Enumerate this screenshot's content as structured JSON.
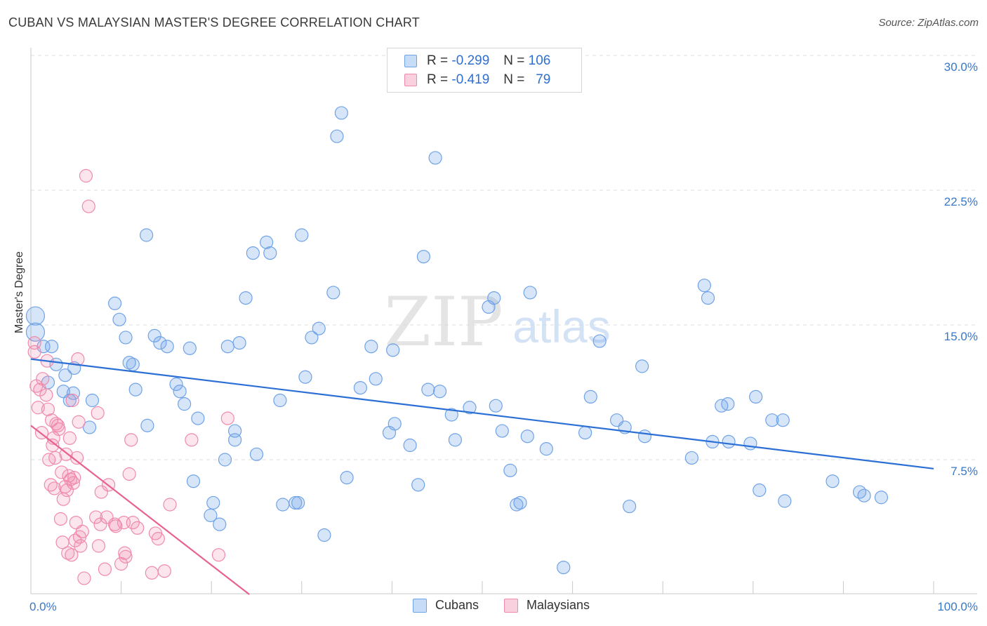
{
  "title": "CUBAN VS MALAYSIAN MASTER'S DEGREE CORRELATION CHART",
  "source": "Source: ZipAtlas.com",
  "watermark": {
    "zip": "ZIP",
    "atlas": "atlas"
  },
  "legend": {
    "rows": [
      {
        "r_label": "R =",
        "r_value": "-0.299",
        "n_label": "N =",
        "n_value": "106",
        "color": "#6fa3e8"
      },
      {
        "r_label": "R =",
        "r_value": "-0.419",
        "n_label": "N =",
        "n_value": "79",
        "color": "#f08aab"
      }
    ]
  },
  "bottom_legend": {
    "items": [
      {
        "label": "Cubans",
        "color": "#6fa3e8"
      },
      {
        "label": "Malaysians",
        "color": "#f08aab"
      }
    ]
  },
  "chart_data": {
    "type": "scatter",
    "title": "CUBAN VS MALAYSIAN MASTER'S DEGREE CORRELATION CHART",
    "xlabel": "",
    "ylabel": "Master's Degree",
    "xlim": [
      0,
      100
    ],
    "ylim": [
      0,
      31
    ],
    "x_tick_labels": {
      "min": "0.0%",
      "max": "100.0%"
    },
    "y_ticks": [
      {
        "value": 7.5,
        "label": "7.5%"
      },
      {
        "value": 15,
        "label": "15.0%"
      },
      {
        "value": 22.5,
        "label": "22.5%"
      },
      {
        "value": 30,
        "label": "30.0%"
      }
    ],
    "grid": true,
    "legend_position": "top-center",
    "series": [
      {
        "name": "Cubans",
        "color": "#6fa3e8",
        "r": -0.299,
        "n": 106,
        "trend": {
          "x": [
            0,
            100
          ],
          "y": [
            13.1,
            7.0
          ]
        },
        "points": [
          [
            0.5,
            15.5
          ],
          [
            0.5,
            14.6
          ],
          [
            1.4,
            13.8
          ],
          [
            2.3,
            13.8
          ],
          [
            2.8,
            12.8
          ],
          [
            1.9,
            11.8
          ],
          [
            3.8,
            12.2
          ],
          [
            4.8,
            12.6
          ],
          [
            3.6,
            11.3
          ],
          [
            4.7,
            11.2
          ],
          [
            4.3,
            10.8
          ],
          [
            6.8,
            10.8
          ],
          [
            6.5,
            9.3
          ],
          [
            9.8,
            15.3
          ],
          [
            9.3,
            16.2
          ],
          [
            10.5,
            14.3
          ],
          [
            10.9,
            12.9
          ],
          [
            11.3,
            12.8
          ],
          [
            11.6,
            11.4
          ],
          [
            12.9,
            9.4
          ],
          [
            13.7,
            14.4
          ],
          [
            14.3,
            14.0
          ],
          [
            15.1,
            13.8
          ],
          [
            12.8,
            20.0
          ],
          [
            16.1,
            11.7
          ],
          [
            16.5,
            11.3
          ],
          [
            17.0,
            10.6
          ],
          [
            17.6,
            13.7
          ],
          [
            18.5,
            9.8
          ],
          [
            18.0,
            6.3
          ],
          [
            19.9,
            4.4
          ],
          [
            20.9,
            3.9
          ],
          [
            20.2,
            5.1
          ],
          [
            21.5,
            7.5
          ],
          [
            21.8,
            13.8
          ],
          [
            22.6,
            9.1
          ],
          [
            22.6,
            8.6
          ],
          [
            23.1,
            14.0
          ],
          [
            23.8,
            16.5
          ],
          [
            24.6,
            19.0
          ],
          [
            25.0,
            7.8
          ],
          [
            26.1,
            19.6
          ],
          [
            26.5,
            19.0
          ],
          [
            27.6,
            10.8
          ],
          [
            27.9,
            5.0
          ],
          [
            29.3,
            5.1
          ],
          [
            29.6,
            5.1
          ],
          [
            30.0,
            20.0
          ],
          [
            30.4,
            12.1
          ],
          [
            31.1,
            14.3
          ],
          [
            31.9,
            14.8
          ],
          [
            32.5,
            3.3
          ],
          [
            33.5,
            16.8
          ],
          [
            33.9,
            25.5
          ],
          [
            34.4,
            26.8
          ],
          [
            35.0,
            6.5
          ],
          [
            36.5,
            11.5
          ],
          [
            37.7,
            13.8
          ],
          [
            38.2,
            12.0
          ],
          [
            39.7,
            9.0
          ],
          [
            40.1,
            13.6
          ],
          [
            40.3,
            9.5
          ],
          [
            42.0,
            8.3
          ],
          [
            42.9,
            6.1
          ],
          [
            43.5,
            18.8
          ],
          [
            44.0,
            11.4
          ],
          [
            44.8,
            24.3
          ],
          [
            45.3,
            11.3
          ],
          [
            46.6,
            10.0
          ],
          [
            47.0,
            8.6
          ],
          [
            48.6,
            10.4
          ],
          [
            50.7,
            16.0
          ],
          [
            51.3,
            16.5
          ],
          [
            51.5,
            10.5
          ],
          [
            52.2,
            9.1
          ],
          [
            53.1,
            6.9
          ],
          [
            53.8,
            5.0
          ],
          [
            54.2,
            5.1
          ],
          [
            55.0,
            8.8
          ],
          [
            55.3,
            16.8
          ],
          [
            57.1,
            8.1
          ],
          [
            59.0,
            1.5
          ],
          [
            61.4,
            9.0
          ],
          [
            62.0,
            11.0
          ],
          [
            63.0,
            14.1
          ],
          [
            64.9,
            9.7
          ],
          [
            65.8,
            9.3
          ],
          [
            66.3,
            4.9
          ],
          [
            67.7,
            12.7
          ],
          [
            68.0,
            8.8
          ],
          [
            73.2,
            7.6
          ],
          [
            74.6,
            17.2
          ],
          [
            75.0,
            16.5
          ],
          [
            75.5,
            8.5
          ],
          [
            76.5,
            10.5
          ],
          [
            77.2,
            10.6
          ],
          [
            77.3,
            8.5
          ],
          [
            79.7,
            8.4
          ],
          [
            80.3,
            11.0
          ],
          [
            80.7,
            5.8
          ],
          [
            82.1,
            9.7
          ],
          [
            83.3,
            9.7
          ],
          [
            83.5,
            5.2
          ],
          [
            88.8,
            6.3
          ],
          [
            91.8,
            5.7
          ],
          [
            92.3,
            5.5
          ],
          [
            94.2,
            5.4
          ]
        ]
      },
      {
        "name": "Malaysians",
        "color": "#f08aab",
        "r": -0.419,
        "n": 79,
        "trend": {
          "x": [
            0,
            24.2
          ],
          "y": [
            9.4,
            0
          ]
        },
        "points": [
          [
            0.4,
            14.0
          ],
          [
            0.4,
            13.5
          ],
          [
            0.6,
            11.6
          ],
          [
            0.8,
            10.4
          ],
          [
            1.0,
            11.4
          ],
          [
            1.2,
            9.0
          ],
          [
            1.3,
            12.0
          ],
          [
            1.7,
            11.1
          ],
          [
            1.8,
            13.0
          ],
          [
            1.9,
            10.3
          ],
          [
            2.0,
            7.5
          ],
          [
            2.2,
            6.1
          ],
          [
            2.3,
            9.7
          ],
          [
            2.4,
            8.3
          ],
          [
            2.5,
            8.7
          ],
          [
            2.6,
            5.9
          ],
          [
            2.7,
            7.6
          ],
          [
            2.8,
            9.5
          ],
          [
            3.0,
            9.4
          ],
          [
            3.1,
            9.2
          ],
          [
            3.3,
            4.2
          ],
          [
            3.4,
            6.8
          ],
          [
            3.5,
            2.9
          ],
          [
            3.6,
            5.3
          ],
          [
            3.8,
            6.0
          ],
          [
            3.9,
            7.8
          ],
          [
            4.0,
            5.8
          ],
          [
            4.1,
            2.3
          ],
          [
            4.2,
            6.6
          ],
          [
            4.3,
            8.7
          ],
          [
            4.4,
            6.4
          ],
          [
            4.5,
            2.2
          ],
          [
            4.6,
            10.8
          ],
          [
            4.7,
            6.2
          ],
          [
            4.8,
            6.5
          ],
          [
            4.9,
            3.0
          ],
          [
            5.0,
            4.0
          ],
          [
            5.1,
            7.6
          ],
          [
            5.2,
            13.1
          ],
          [
            5.3,
            9.6
          ],
          [
            5.4,
            3.2
          ],
          [
            5.5,
            2.7
          ],
          [
            5.7,
            3.5
          ],
          [
            5.9,
            0.9
          ],
          [
            6.1,
            23.3
          ],
          [
            6.4,
            21.6
          ],
          [
            7.2,
            4.3
          ],
          [
            7.4,
            10.1
          ],
          [
            7.5,
            2.7
          ],
          [
            7.7,
            3.9
          ],
          [
            7.8,
            5.7
          ],
          [
            8.2,
            1.4
          ],
          [
            8.4,
            4.3
          ],
          [
            8.6,
            6.1
          ],
          [
            9.3,
            3.9
          ],
          [
            9.4,
            3.8
          ],
          [
            10.0,
            1.7
          ],
          [
            10.3,
            4.0
          ],
          [
            10.4,
            2.3
          ],
          [
            10.5,
            2.1
          ],
          [
            10.9,
            6.7
          ],
          [
            11.1,
            8.6
          ],
          [
            11.3,
            4.0
          ],
          [
            11.8,
            3.7
          ],
          [
            13.4,
            1.2
          ],
          [
            13.8,
            3.4
          ],
          [
            14.1,
            3.1
          ],
          [
            14.8,
            1.3
          ],
          [
            15.4,
            5.0
          ],
          [
            17.8,
            8.6
          ],
          [
            20.8,
            2.2
          ],
          [
            21.8,
            9.8
          ]
        ]
      }
    ]
  }
}
